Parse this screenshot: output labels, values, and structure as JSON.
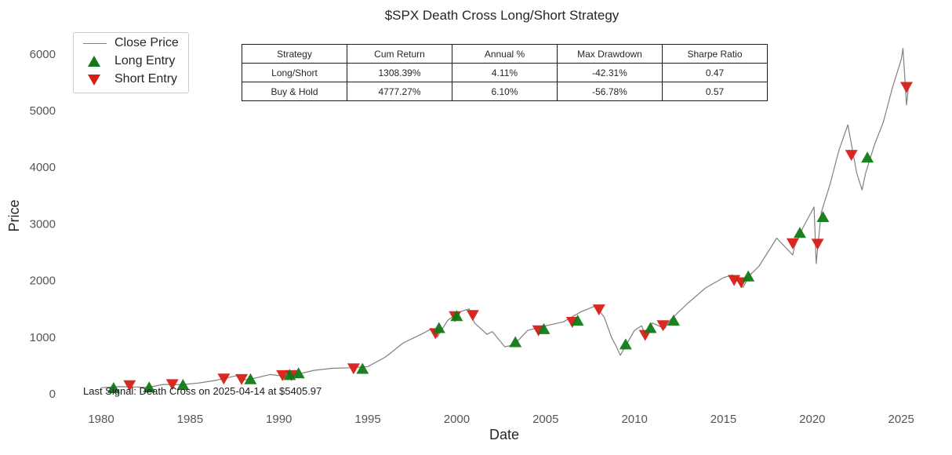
{
  "chart_data": {
    "type": "line",
    "title": "$SPX Death Cross Long/Short Strategy",
    "xlabel": "Date",
    "ylabel": "Price",
    "xlim": [
      1978.5,
      2026.8
    ],
    "ylim": [
      -250,
      6400
    ],
    "x_ticks": [
      1980,
      1985,
      1990,
      1995,
      2000,
      2005,
      2010,
      2015,
      2020,
      2025
    ],
    "y_ticks": [
      0,
      1000,
      2000,
      3000,
      4000,
      5000,
      6000
    ],
    "grid": false,
    "legend_position": "top-left",
    "series": [
      {
        "name": "Close Price",
        "color": "#808080",
        "x": [
          1980.0,
          1981.0,
          1982.0,
          1982.6,
          1983.5,
          1984.5,
          1985.5,
          1986.5,
          1987.6,
          1987.85,
          1988.5,
          1989.5,
          1990.6,
          1991.0,
          1992.0,
          1993.0,
          1994.0,
          1995.0,
          1996.0,
          1997.0,
          1998.0,
          1998.6,
          1998.9,
          1999.5,
          2000.2,
          2000.7,
          2001.0,
          2001.7,
          2002.0,
          2002.7,
          2003.2,
          2004.0,
          2005.0,
          2006.0,
          2007.0,
          2007.8,
          2008.3,
          2008.7,
          2009.0,
          2009.2,
          2010.0,
          2010.4,
          2010.6,
          2011.0,
          2011.7,
          2012.0,
          2013.0,
          2014.0,
          2015.0,
          2015.5,
          2016.1,
          2016.5,
          2017.0,
          2018.0,
          2018.9,
          2019.0,
          2019.5,
          2020.1,
          2020.22,
          2020.5,
          2021.0,
          2021.5,
          2022.0,
          2022.5,
          2022.8,
          2023.0,
          2023.5,
          2024.0,
          2024.5,
          2025.0,
          2025.1,
          2025.3,
          2025.4
        ],
        "values": [
          108,
          125,
          120,
          110,
          165,
          160,
          190,
          240,
          320,
          240,
          265,
          340,
          300,
          345,
          415,
          450,
          460,
          480,
          650,
          900,
          1050,
          1150,
          1000,
          1300,
          1450,
          1500,
          1250,
          1050,
          1100,
          830,
          860,
          1120,
          1200,
          1270,
          1450,
          1550,
          1350,
          1000,
          820,
          680,
          1120,
          1200,
          1050,
          1250,
          1150,
          1300,
          1600,
          1870,
          2050,
          2100,
          1880,
          2100,
          2250,
          2750,
          2450,
          2600,
          2950,
          3300,
          2300,
          3200,
          3700,
          4300,
          4750,
          3900,
          3600,
          3900,
          4400,
          4800,
          5400,
          5900,
          6100,
          5100,
          5400
        ]
      },
      {
        "name": "Long Entry",
        "color": "#0f7a16",
        "marker": "triangle-up",
        "x": [
          1980.7,
          1982.7,
          1984.6,
          1988.4,
          1990.6,
          1991.1,
          1994.7,
          1999.0,
          2000.0,
          2003.3,
          2004.9,
          2006.8,
          2009.5,
          2010.9,
          2012.2,
          2016.4,
          2019.3,
          2020.6,
          2023.1
        ],
        "values": [
          110,
          120,
          165,
          265,
          340,
          370,
          450,
          1170,
          1380,
          920,
          1150,
          1300,
          880,
          1170,
          1300,
          2080,
          2850,
          3130,
          4180
        ]
      },
      {
        "name": "Short Entry",
        "color": "#d81d16",
        "marker": "triangle-down",
        "x": [
          1981.6,
          1984.0,
          1986.9,
          1987.9,
          1990.2,
          1990.7,
          1994.2,
          1998.8,
          1999.9,
          2000.9,
          2004.6,
          2006.5,
          2008.0,
          2010.6,
          2011.6,
          2015.6,
          2016.0,
          2018.9,
          2020.3,
          2022.2,
          2025.3
        ],
        "values": [
          140,
          160,
          260,
          250,
          320,
          320,
          440,
          1060,
          1360,
          1380,
          1110,
          1260,
          1480,
          1030,
          1200,
          2000,
          1960,
          2650,
          2640,
          4210,
          5410
        ]
      }
    ],
    "annotation": "Last Signal: Death Cross on 2025-04-14 at $5405.97",
    "table": {
      "headers": [
        "Strategy",
        "Cum Return",
        "Annual %",
        "Max Drawdown",
        "Sharpe Ratio"
      ],
      "rows": [
        [
          "Long/Short",
          "1308.39%",
          "4.11%",
          "-42.31%",
          "0.47"
        ],
        [
          "Buy & Hold",
          "4777.27%",
          "6.10%",
          "-56.78%",
          "0.57"
        ]
      ]
    }
  }
}
